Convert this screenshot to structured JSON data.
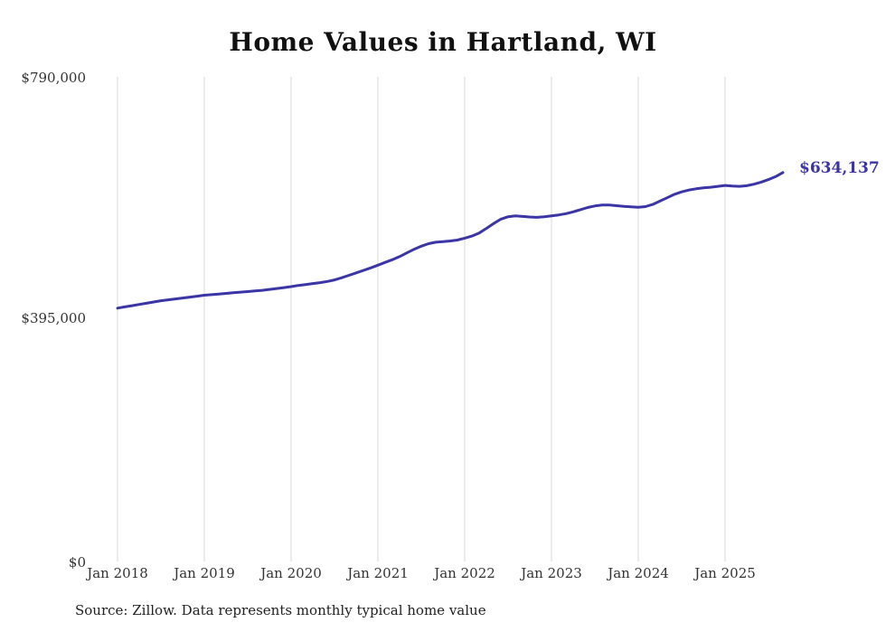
{
  "title": "Home Values in Hartland, WI",
  "end_label": "$634,137",
  "source": "Source: Zillow. Data represents monthly typical home value",
  "line_color": "#3b35a6",
  "gridline_color": "#d8d8d8",
  "chart_data": {
    "type": "line",
    "title": "Home Values in Hartland, WI",
    "xlabel": "",
    "ylabel": "",
    "ylim": [
      0,
      790000
    ],
    "grid": "vertical-only",
    "legend": "none",
    "y_tick_labels": [
      "$790,000",
      "$395,000",
      "$0"
    ],
    "x_tick_labels": [
      "Jan 2018",
      "Jan 2019",
      "Jan 2020",
      "Jan 2021",
      "Jan 2022",
      "Jan 2023",
      "Jan 2024",
      "Jan 2025"
    ],
    "final_value": 634137,
    "x": [
      "2018-01",
      "2018-02",
      "2018-03",
      "2018-04",
      "2018-05",
      "2018-06",
      "2018-07",
      "2018-08",
      "2018-09",
      "2018-10",
      "2018-11",
      "2018-12",
      "2019-01",
      "2019-02",
      "2019-03",
      "2019-04",
      "2019-05",
      "2019-06",
      "2019-07",
      "2019-08",
      "2019-09",
      "2019-10",
      "2019-11",
      "2019-12",
      "2020-01",
      "2020-02",
      "2020-03",
      "2020-04",
      "2020-05",
      "2020-06",
      "2020-07",
      "2020-08",
      "2020-09",
      "2020-10",
      "2020-11",
      "2020-12",
      "2021-01",
      "2021-02",
      "2021-03",
      "2021-04",
      "2021-05",
      "2021-06",
      "2021-07",
      "2021-08",
      "2021-09",
      "2021-10",
      "2021-11",
      "2021-12",
      "2022-01",
      "2022-02",
      "2022-03",
      "2022-04",
      "2022-05",
      "2022-06",
      "2022-07",
      "2022-08",
      "2022-09",
      "2022-10",
      "2022-11",
      "2022-12",
      "2023-01",
      "2023-02",
      "2023-03",
      "2023-04",
      "2023-05",
      "2023-06",
      "2023-07",
      "2023-08",
      "2023-09",
      "2023-10",
      "2023-11",
      "2023-12",
      "2024-01",
      "2024-02",
      "2024-03",
      "2024-04",
      "2024-05",
      "2024-06",
      "2024-07",
      "2024-08",
      "2024-09",
      "2024-10",
      "2024-11",
      "2024-12",
      "2025-01",
      "2025-02",
      "2025-03",
      "2025-04",
      "2025-05",
      "2025-06",
      "2025-07",
      "2025-08",
      "2025-09"
    ],
    "values": [
      413000,
      415000,
      417000,
      419000,
      421000,
      423000,
      425000,
      426500,
      428000,
      429500,
      431000,
      432500,
      434000,
      435000,
      436000,
      437000,
      438000,
      439000,
      440000,
      441000,
      442000,
      443500,
      445000,
      446500,
      448000,
      450000,
      451500,
      453000,
      454500,
      456500,
      459000,
      462500,
      466500,
      470500,
      474500,
      478500,
      483000,
      487500,
      492000,
      497000,
      503000,
      509000,
      514000,
      518000,
      520500,
      521500,
      522500,
      524000,
      527000,
      530500,
      535500,
      543000,
      551000,
      558000,
      562000,
      563500,
      562500,
      561500,
      561000,
      562000,
      563500,
      565000,
      567000,
      570000,
      573500,
      577000,
      579500,
      581000,
      581000,
      580000,
      579000,
      578000,
      577500,
      578500,
      582000,
      587500,
      593000,
      598500,
      602500,
      605500,
      607500,
      609000,
      610000,
      611500,
      613000,
      612000,
      611500,
      612500,
      615000,
      618500,
      622500,
      627500,
      634137
    ]
  }
}
